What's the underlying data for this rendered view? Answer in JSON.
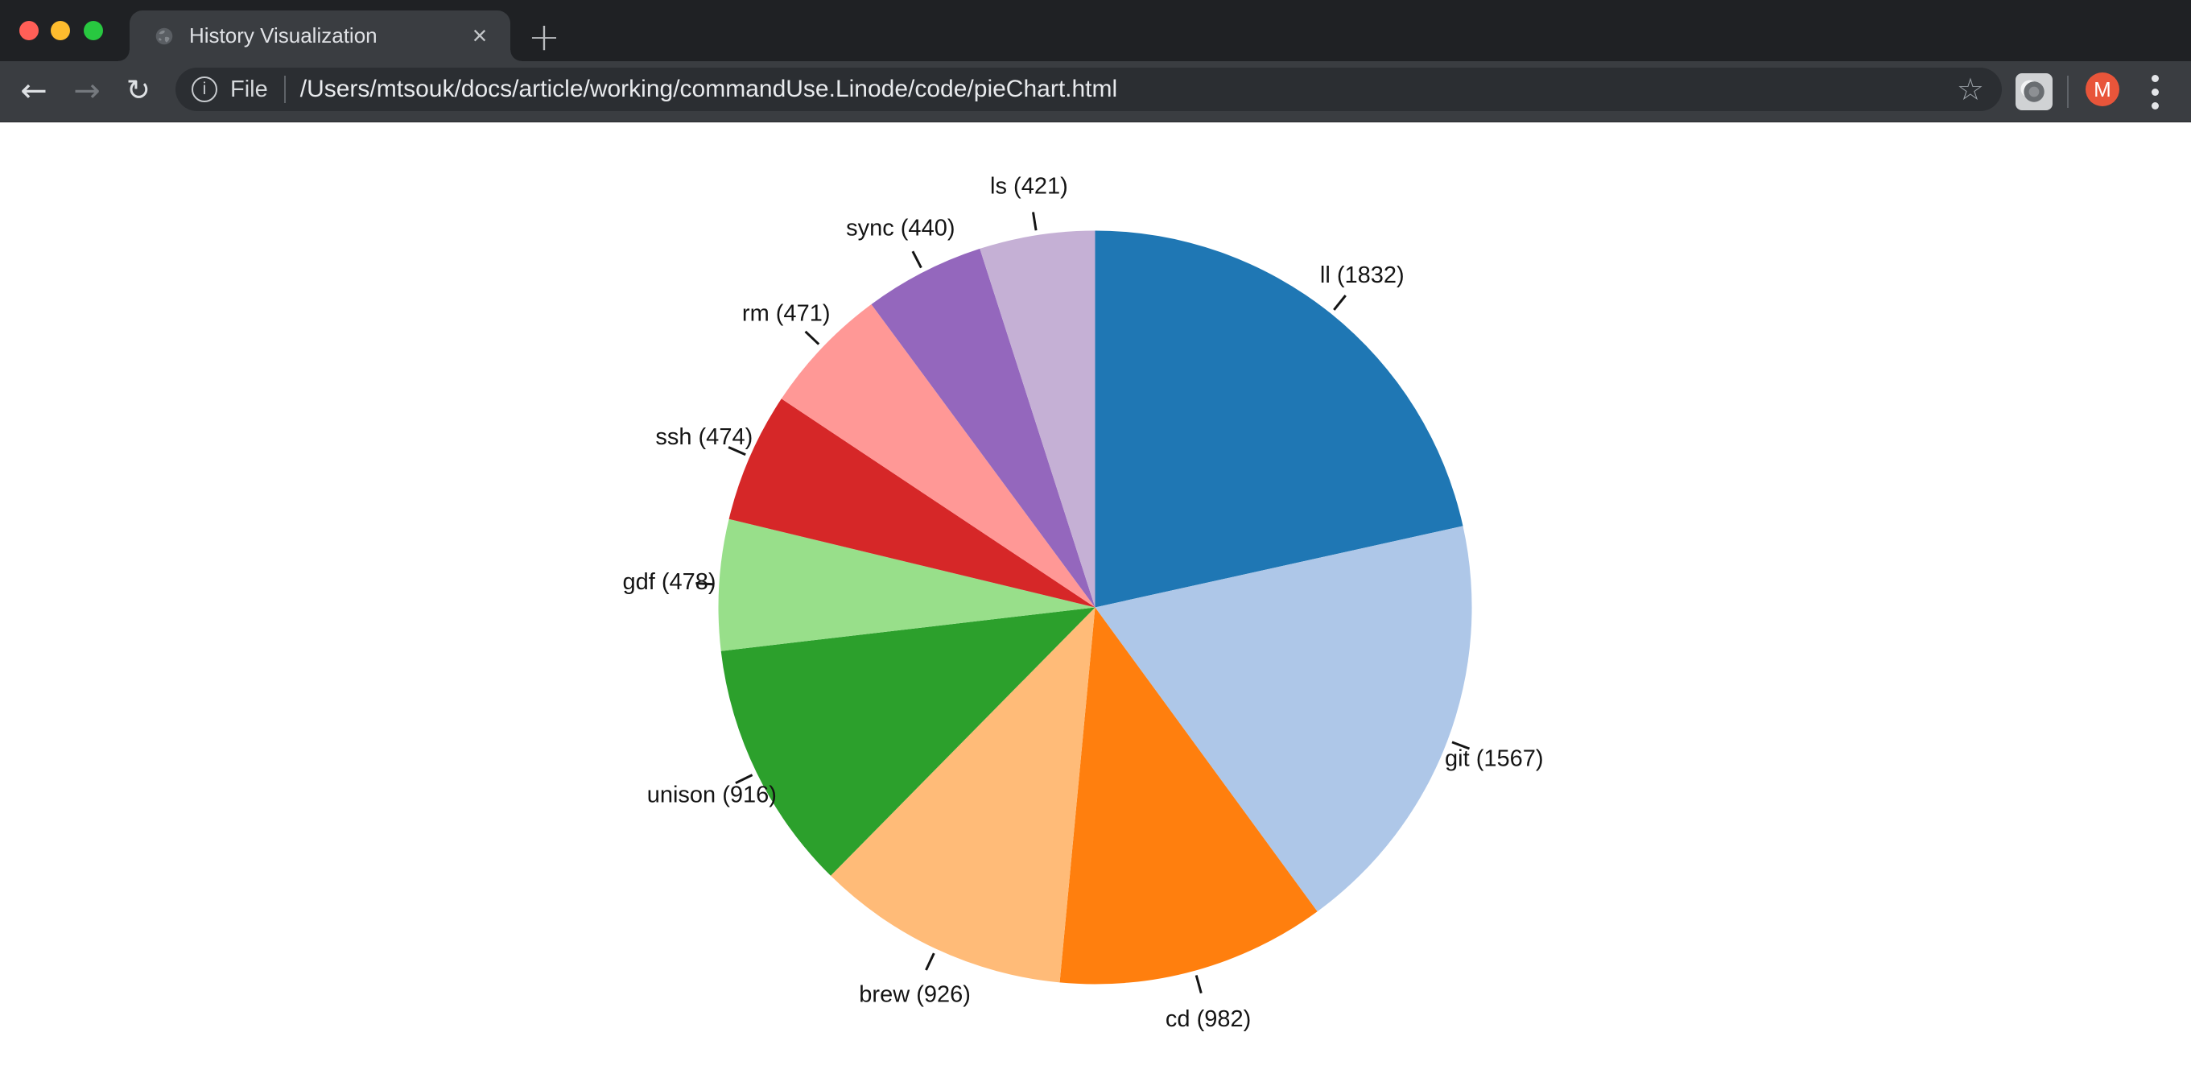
{
  "window": {
    "buttons": [
      "close",
      "minimize",
      "zoom"
    ]
  },
  "tab_bar": {
    "active_tab": {
      "title": "History Visualization",
      "close_icon": "×"
    },
    "new_tab_icon": "+"
  },
  "toolbar": {
    "back_icon": "←",
    "forward_icon": "→",
    "reload_icon": "↻",
    "omnibox": {
      "info_icon": "i",
      "scheme_label": "File",
      "path": "/Users/mtsouk/docs/article/working/commandUse.Linode/code/pieChart.html",
      "bookmark_star_icon": "☆"
    },
    "avatar_letter": "M"
  },
  "chart_data": {
    "type": "pie",
    "title": "",
    "categories": [
      "ll",
      "git",
      "cd",
      "brew",
      "unison",
      "gdf",
      "ssh",
      "rm",
      "sync",
      "ls"
    ],
    "values": [
      1832,
      1567,
      982,
      926,
      916,
      478,
      474,
      471,
      440,
      421
    ],
    "labels": [
      "ll (1832)",
      "git (1567)",
      "cd (982)",
      "brew (926)",
      "unison (916)",
      "gdf (478)",
      "ssh (474)",
      "rm (471)",
      "sync (440)",
      "ls (421)"
    ],
    "colors": [
      "#1f77b4",
      "#aec7e8",
      "#ff7f0e",
      "#ffbb78",
      "#2ca02c",
      "#98df8a",
      "#d62728",
      "#ff9896",
      "#9467bd",
      "#c5b0d5"
    ],
    "start_angle_deg": 0,
    "direction": "clockwise",
    "sort": "descending",
    "legend": "none",
    "label_style": "outside-with-radial-ticks",
    "label_color": "#141414",
    "tick_color": "#141414",
    "background": "#ffffff"
  }
}
